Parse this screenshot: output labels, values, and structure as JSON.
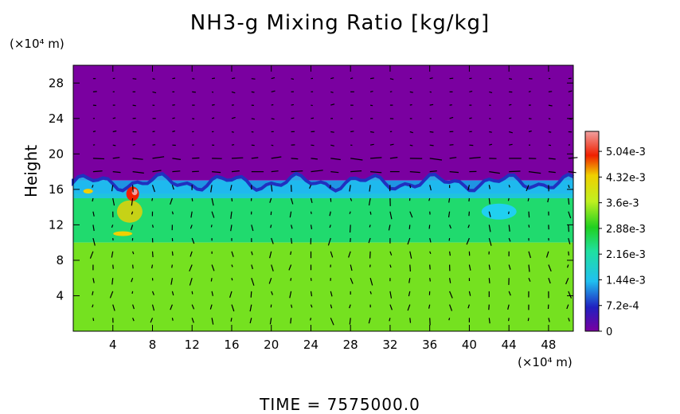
{
  "chart_data": {
    "type": "heatmap",
    "title": "NH3-g Mixing Ratio [kg/kg]",
    "ylabel": "Height",
    "y_unit": "(×10⁴ m)",
    "x_unit": "(×10⁴ m)",
    "x_ticks": [
      4,
      8,
      12,
      16,
      20,
      24,
      28,
      32,
      36,
      40,
      44,
      48
    ],
    "y_ticks": [
      4,
      8,
      12,
      16,
      20,
      24,
      28
    ],
    "xlim": [
      0,
      50.5
    ],
    "ylim": [
      0,
      30
    ],
    "colorbar": {
      "labels": [
        "5.04e-3",
        "4.32e-3",
        "3.6e-3",
        "2.88e-3",
        "2.16e-3",
        "1.44e-3",
        "7.2e-4",
        "0"
      ],
      "values": [
        0.00504,
        0.00432,
        0.0036,
        0.00288,
        0.00216,
        0.00144,
        0.00072,
        0
      ],
      "max": 0.0056
    },
    "layers": [
      {
        "name": "upper",
        "from_height": 17,
        "to_height": 30,
        "value": 0
      },
      {
        "name": "boundary",
        "from_height": 15.5,
        "to_height": 17,
        "value": 0.0012
      },
      {
        "name": "middle",
        "from_height": 10,
        "to_height": 15.5,
        "value": 0.0025
      },
      {
        "name": "lower",
        "from_height": 0,
        "to_height": 10,
        "value": 0.0033
      }
    ],
    "hotspot": {
      "x": 6,
      "y": 15.5,
      "value": 0.0055
    },
    "vectors": true
  },
  "footer": {
    "time_label": "TIME  =  7575000.0"
  }
}
